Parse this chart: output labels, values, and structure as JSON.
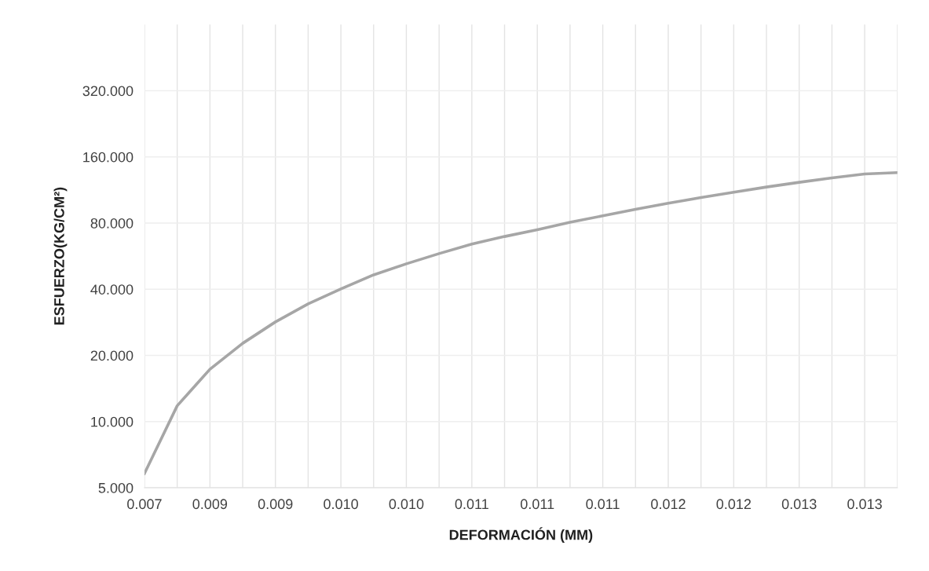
{
  "chart_data": {
    "type": "line",
    "xlabel": "DEFORMACIÓN (MM)",
    "ylabel": "ESFUERZO(KG/CM²)",
    "categories": [
      "0.007",
      null,
      "0.009",
      null,
      "0.009",
      null,
      "0.010",
      null,
      "0.010",
      null,
      "0.011",
      null,
      "0.011",
      null,
      "0.011",
      null,
      "0.012",
      null,
      "0.012",
      null,
      "0.013",
      null,
      "0.013",
      null
    ],
    "series": [
      {
        "color": "#a6a6a6",
        "values": [
          5.8,
          11.8,
          17.3,
          22.7,
          28.4,
          34.3,
          40.1,
          46.5,
          52.2,
          58.1,
          64.2,
          69.5,
          74.6,
          80.6,
          86.3,
          92.4,
          98.4,
          104.5,
          110.5,
          116.7,
          122.6,
          128.4,
          133.8,
          135.7
        ]
      }
    ],
    "log": "y",
    "ylim": [
      5,
      640
    ],
    "yticks": [
      {
        "value": 5,
        "label": "5.000"
      },
      {
        "value": 10,
        "label": "10.000"
      },
      {
        "value": 20,
        "label": "20.000"
      },
      {
        "value": 40,
        "label": "40.000"
      },
      {
        "value": 80,
        "label": "80.000"
      },
      {
        "value": 160,
        "label": "160.000"
      },
      {
        "value": 320,
        "label": "320.000"
      }
    ],
    "grid": true,
    "marker": "none",
    "line_style": "solid"
  }
}
